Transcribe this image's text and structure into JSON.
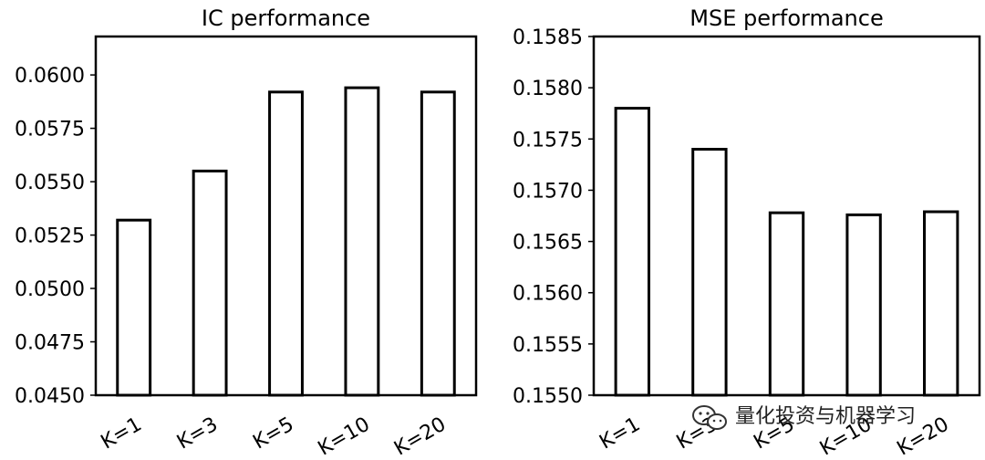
{
  "chart_data": [
    {
      "type": "bar",
      "title": "IC performance",
      "categories": [
        "K=1",
        "K=3",
        "K=5",
        "K=10",
        "K=20"
      ],
      "values": [
        0.0532,
        0.0555,
        0.0592,
        0.0594,
        0.0592
      ],
      "ylim": [
        0.045,
        0.0618
      ],
      "yticks": [
        0.045,
        0.0475,
        0.05,
        0.0525,
        0.055,
        0.0575,
        0.06
      ],
      "ytick_labels": [
        "0.0450",
        "0.0475",
        "0.0500",
        "0.0525",
        "0.0550",
        "0.0575",
        "0.0600"
      ],
      "xlabel": "",
      "ylabel": "",
      "grid": false,
      "bar_fill": "#ffffff",
      "bar_edge": "#000000"
    },
    {
      "type": "bar",
      "title": "MSE performance",
      "categories": [
        "K=1",
        "K=3",
        "K=5",
        "K=10",
        "K=20"
      ],
      "values": [
        0.1578,
        0.1574,
        0.15678,
        0.15676,
        0.15679
      ],
      "ylim": [
        0.155,
        0.1585
      ],
      "yticks": [
        0.155,
        0.1555,
        0.156,
        0.1565,
        0.157,
        0.1575,
        0.158,
        0.1585
      ],
      "ytick_labels": [
        "0.1550",
        "0.1555",
        "0.1560",
        "0.1565",
        "0.1570",
        "0.1575",
        "0.1580",
        "0.1585"
      ],
      "xlabel": "",
      "ylabel": "",
      "grid": false,
      "bar_fill": "#ffffff",
      "bar_edge": "#000000"
    }
  ],
  "watermark": {
    "text": "量化投资与机器学习",
    "icon": "wechat-icon"
  }
}
